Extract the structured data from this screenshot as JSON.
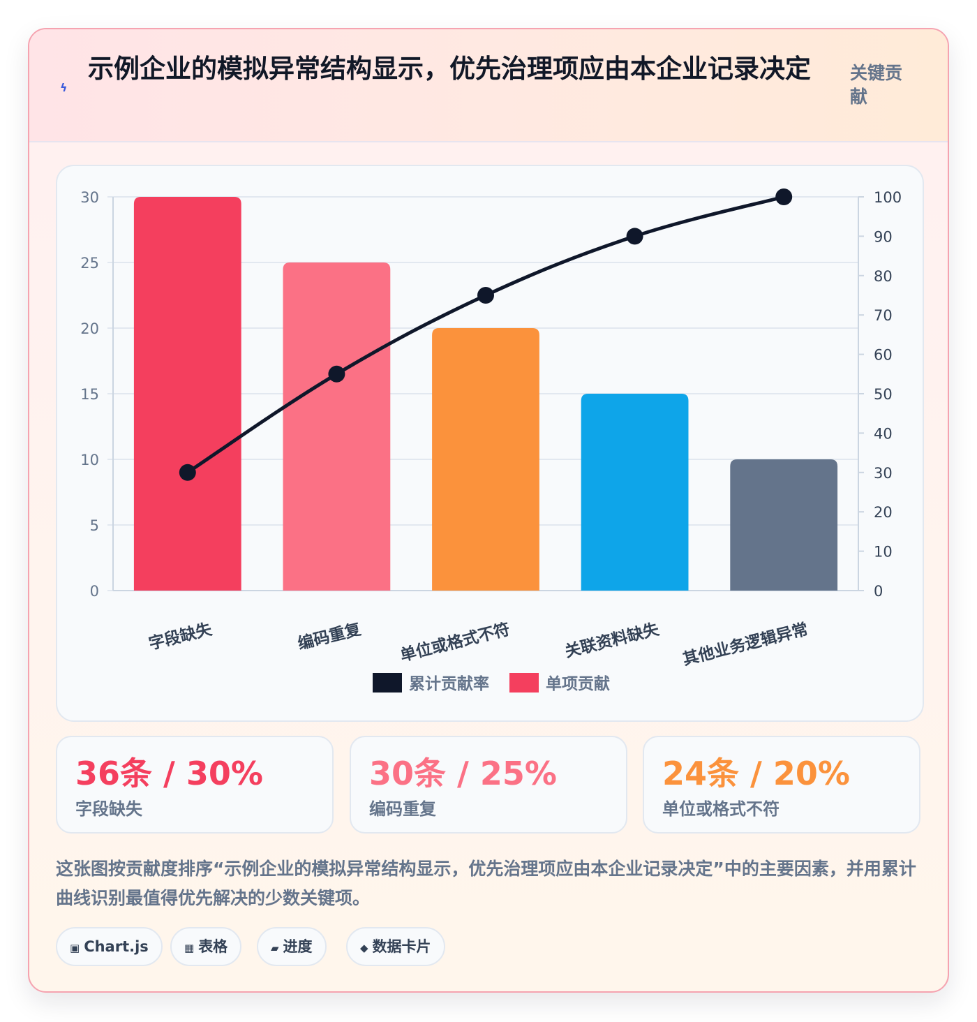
{
  "header": {
    "title": "示例企业的模拟异常结构显示，优先治理项应由本企业记录决定",
    "tag": "关键贡献",
    "icon": "lightning-bolt"
  },
  "chart_data": {
    "type": "bar",
    "categories": [
      "字段缺失",
      "编码重复",
      "单位或格式不符",
      "关联资料缺失",
      "其他业务逻辑异常"
    ],
    "series": [
      {
        "name": "累计贡献率",
        "type": "line",
        "axis": "right",
        "values": [
          30,
          55,
          75,
          90,
          100
        ],
        "color": "#0f172a"
      },
      {
        "name": "单项贡献",
        "type": "bar",
        "axis": "left",
        "values": [
          30,
          25,
          20,
          15,
          10
        ],
        "colors": [
          "#f43f5e",
          "#fb7185",
          "#fb923c",
          "#0ea5e9",
          "#64748b"
        ]
      }
    ],
    "ylim": [
      0,
      30
    ],
    "y_ticks": [
      0,
      5,
      10,
      15,
      20,
      25,
      30
    ],
    "y2lim": [
      0,
      100
    ],
    "y2_ticks": [
      0,
      10,
      20,
      30,
      40,
      50,
      60,
      70,
      80,
      90,
      100
    ],
    "grid": true,
    "legend_position": "bottom"
  },
  "stats": [
    {
      "value": "36条 / 30%",
      "label": "字段缺失",
      "color": "#f43f5e"
    },
    {
      "value": "30条 / 25%",
      "label": "编码重复",
      "color": "#fb7185"
    },
    {
      "value": "24条 / 20%",
      "label": "单位或格式不符",
      "color": "#fb923c"
    }
  ],
  "description": "这张图按贡献度排序“示例企业的模拟异常结构显示，优先治理项应由本企业记录决定”中的主要因素，并用累计曲线识别最值得优先解决的少数关键项。",
  "pills": [
    {
      "icon": "▣",
      "label": "Chart.js"
    },
    {
      "icon": "▦",
      "label": "表格"
    },
    {
      "icon": "▰",
      "label": "进度"
    },
    {
      "icon": "◆",
      "label": "数据卡片"
    }
  ]
}
